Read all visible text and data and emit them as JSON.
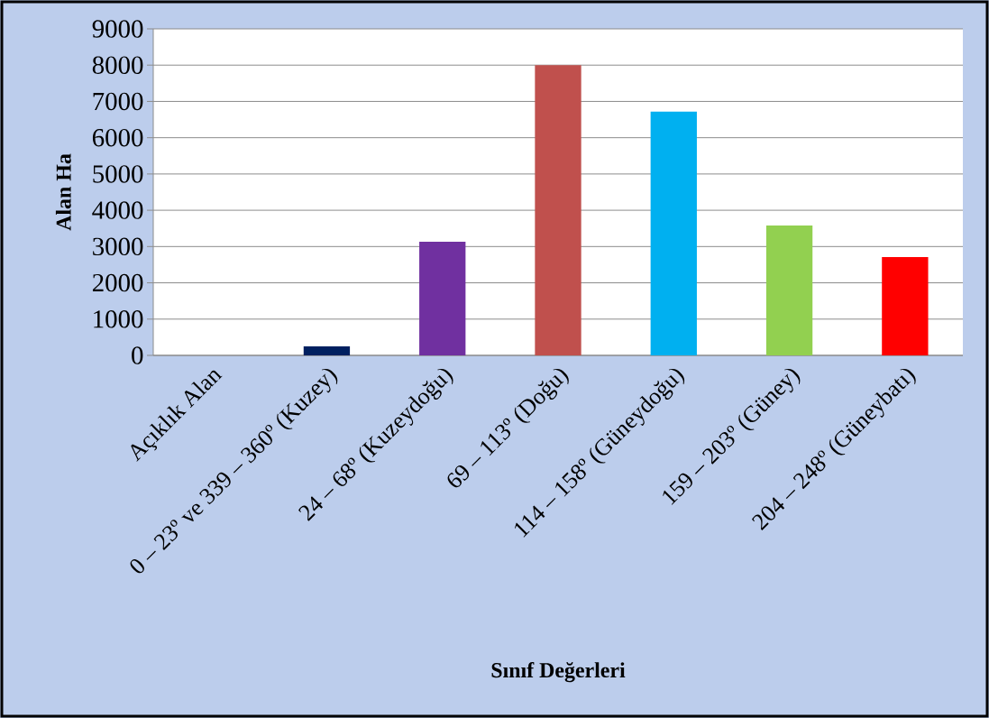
{
  "chart_data": {
    "type": "bar",
    "xlabel": "Sınıf Değerleri",
    "ylabel": "Alan Ha",
    "categories": [
      "Açıklık Alan",
      "0 – 23º ve 339 – 360º (Kuzey)",
      "24 – 68º (Kuzeydoğu)",
      "69 – 113º (Doğu)",
      "114 – 158º (Güneydoğu)",
      "159 – 203º (Güney)",
      "204 – 248º (Güneybatı)"
    ],
    "values": [
      0,
      250,
      3130,
      8000,
      6720,
      3580,
      2710
    ],
    "colors": [
      "#1f3864",
      "#002060",
      "#7030a0",
      "#c0504d",
      "#00b0f0",
      "#92d050",
      "#ff0000"
    ],
    "ylim": [
      0,
      9000
    ],
    "yticks": [
      0,
      1000,
      2000,
      3000,
      4000,
      5000,
      6000,
      7000,
      8000,
      9000
    ],
    "grid": "y"
  }
}
